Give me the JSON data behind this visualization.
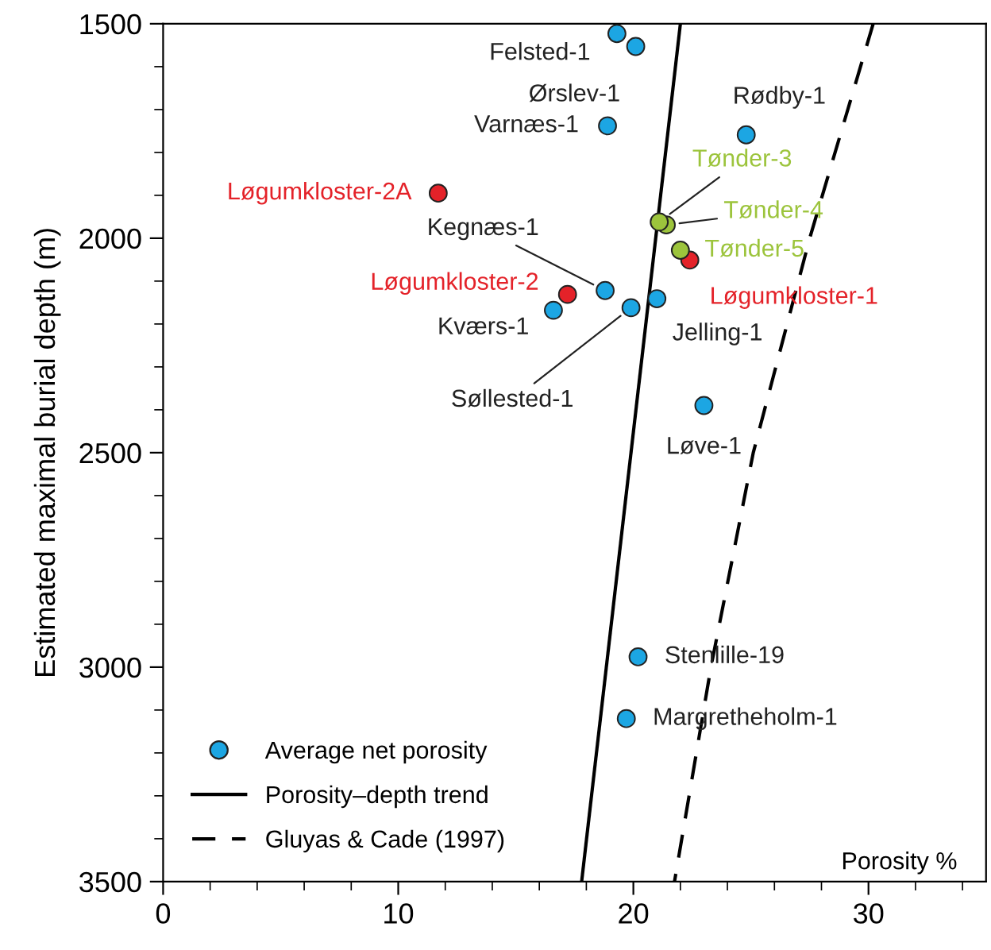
{
  "chart_data": {
    "type": "scatter",
    "xlabel": "Porosity %",
    "ylabel": "Estimated maximal burial depth (m)",
    "xlim": [
      0,
      35
    ],
    "xticks": [
      0,
      10,
      20,
      30
    ],
    "ylim": [
      3500,
      1500
    ],
    "yticks": [
      1500,
      2000,
      2500,
      3000,
      3500
    ],
    "grid": false,
    "legend": "bottom left",
    "series": [
      {
        "name": "Average net porosity",
        "marker": "circle",
        "x": [
          19.3,
          20.1,
          18.9,
          24.8,
          11.7,
          21.1,
          21.4,
          22.0,
          22.4,
          18.8,
          17.2,
          21.0,
          16.6,
          19.9,
          23.0,
          20.2,
          19.7
        ],
        "values": [
          1523,
          1553,
          1738,
          1759,
          1895,
          1962,
          1969,
          2028,
          2051,
          2122,
          2131,
          2141,
          2168,
          2162,
          2390,
          2976,
          3120
        ],
        "colors": [
          "#1ca6e3",
          "#1ca6e3",
          "#1ca6e3",
          "#1ca6e3",
          "#e42229",
          "#9cc43c",
          "#9cc43c",
          "#9cc43c",
          "#e42229",
          "#1ca6e3",
          "#e42229",
          "#1ca6e3",
          "#1ca6e3",
          "#1ca6e3",
          "#1ca6e3",
          "#1ca6e3",
          "#1ca6e3"
        ]
      },
      {
        "name": "Porosity–depth trend",
        "type": "line",
        "line_style": "solid",
        "marker": "none",
        "color": "#000000",
        "x": [
          17.8,
          22.0
        ],
        "values": [
          3500,
          1500
        ]
      },
      {
        "name": "Gluyas & Cade (1997)",
        "type": "line",
        "line_style": "dashed",
        "marker": "none",
        "color": "#000000",
        "x": [
          30.2,
          27.5,
          25.1,
          23.3,
          21.75
        ],
        "values": [
          1500,
          2000,
          2500,
          3000,
          3500
        ]
      }
    ],
    "annotations": [
      {
        "text": "Felsted-1",
        "x": 19.3,
        "y": 1523
      },
      {
        "text": "Ørslev-1",
        "x": 20.1,
        "y": 1553
      },
      {
        "text": "Varnæs-1",
        "x": 18.9,
        "y": 1738
      },
      {
        "text": "Rødby-1",
        "x": 24.8,
        "y": 1759
      },
      {
        "text": "Løgumkloster-2A",
        "x": 11.7,
        "y": 1895
      },
      {
        "text": "Tønder-3",
        "x": 21.1,
        "y": 1962
      },
      {
        "text": "Tønder-4",
        "x": 21.4,
        "y": 1969
      },
      {
        "text": "Tønder-5",
        "x": 22.0,
        "y": 2028
      },
      {
        "text": "Løgumkloster-1",
        "x": 22.4,
        "y": 2051
      },
      {
        "text": "Kegnæs-1",
        "x": 18.8,
        "y": 2122
      },
      {
        "text": "Løgumkloster-2",
        "x": 17.2,
        "y": 2131
      },
      {
        "text": "Jelling-1",
        "x": 21.0,
        "y": 2141
      },
      {
        "text": "Kværs-1",
        "x": 16.6,
        "y": 2168
      },
      {
        "text": "Søllested-1",
        "x": 19.9,
        "y": 2162
      },
      {
        "text": "Løve-1",
        "x": 23.0,
        "y": 2390
      },
      {
        "text": "Stenlille-19",
        "x": 20.2,
        "y": 2976
      },
      {
        "text": "Margretheholm-1",
        "x": 19.7,
        "y": 3120
      }
    ]
  }
}
